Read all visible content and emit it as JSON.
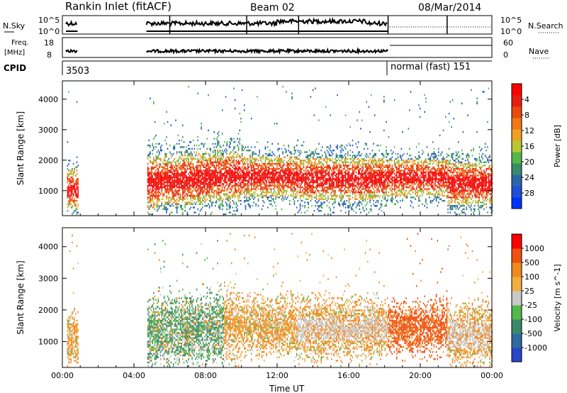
{
  "header": {
    "site": "Rankin Inlet (fitACF)",
    "beam": "Beam 02",
    "date": "08/Mar/2014"
  },
  "strip_labels": {
    "nsky": "N.Sky",
    "nsky_ticks": [
      "10^5",
      "10^0"
    ],
    "nsearch": "N.Search",
    "nsearch_ticks": [
      "10^5",
      "10^0"
    ],
    "freq_line1": "Freq.",
    "freq_line2": "[MHz]",
    "freq_ticks": [
      "18",
      "8"
    ],
    "nave": "Nave",
    "nave_ticks": [
      "60",
      "0"
    ],
    "cpid": "CPID",
    "cpid_1": "3503",
    "cpid_2": "normal (fast) 151"
  },
  "chart_data": [
    {
      "type": "heatmap",
      "panel": "power",
      "ylabel": "Slant Range [km]",
      "xlabel": "",
      "x_ticks": [
        "00:00",
        "04:00",
        "08:00",
        "12:00",
        "16:00",
        "20:00",
        "00:00"
      ],
      "xlim": [
        0,
        24
      ],
      "y_ticks": [
        1000,
        2000,
        3000,
        4000
      ],
      "ylim": [
        180,
        4600
      ],
      "colorbar": {
        "label": "Power [dB]",
        "ticks": [
          "4",
          "8",
          "12",
          "16",
          "20",
          "24",
          "28"
        ],
        "colors": [
          "#0033ff",
          "#1f4fd8",
          "#2a66a8",
          "#3a8a6a",
          "#55b84a",
          "#b8c832",
          "#f0a020",
          "#f07818",
          "#e84a10",
          "#e81e10",
          "#ff0000"
        ]
      },
      "data_gaps_hours": [
        [
          0.9,
          4.7
        ]
      ]
    },
    {
      "type": "heatmap",
      "panel": "velocity",
      "ylabel": "Slant Range [km]",
      "xlabel": "Time UT",
      "x_ticks": [
        "00:00",
        "04:00",
        "08:00",
        "12:00",
        "16:00",
        "20:00",
        "00:00"
      ],
      "xlim": [
        0,
        24
      ],
      "y_ticks": [
        1000,
        2000,
        3000,
        4000
      ],
      "ylim": [
        180,
        4600
      ],
      "colorbar": {
        "label": "Velocity [m s^-1]",
        "ticks": [
          "1000",
          "500",
          "100",
          "25",
          "-25",
          "-100",
          "-500",
          "-1000"
        ],
        "colors": [
          "#2846c8",
          "#2f6aa0",
          "#3a8a6a",
          "#55b84a",
          "#c8c8c8",
          "#f0b040",
          "#f08a20",
          "#f05010",
          "#ff0000"
        ]
      },
      "data_gaps_hours": [
        [
          0.9,
          4.7
        ]
      ]
    }
  ],
  "colors": {
    "power_red": "#ff1a0a",
    "power_orange": "#f07a18",
    "power_green": "#4fae48",
    "power_blue": "#2a56b8",
    "vel_grey": "#c8c8c8",
    "vel_orange": "#f08a20",
    "vel_green": "#4fae48",
    "vel_teal": "#2f7a6a"
  }
}
